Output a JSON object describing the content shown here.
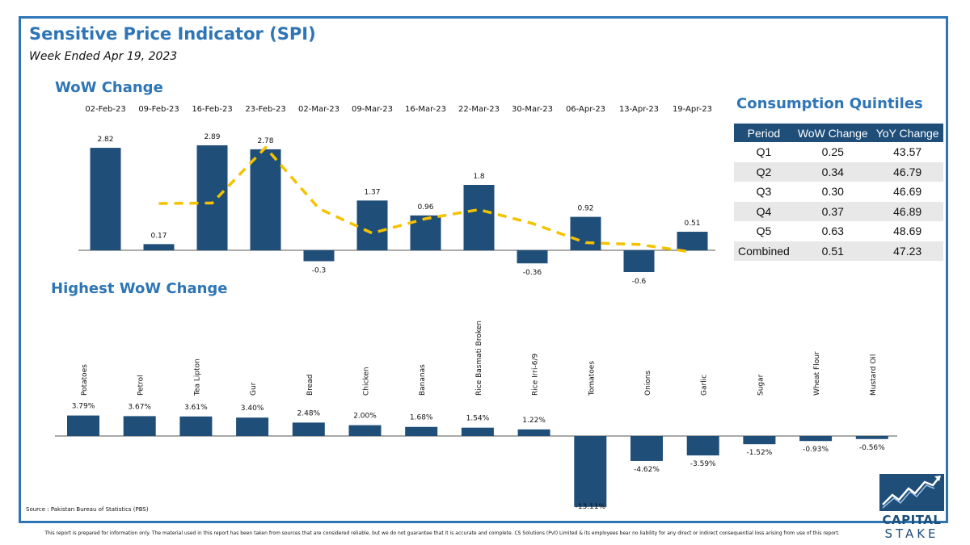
{
  "header": {
    "title": "Sensitive Price Indicator (SPI)",
    "subtitle": "Week Ended Apr 19, 2023"
  },
  "colors": {
    "accent": "#2e75b6",
    "bar": "#1f4e79",
    "trend": "#f5c200",
    "table_header": "#1f4e79"
  },
  "sections": {
    "wow": "WoW Change",
    "highest": "Highest WoW Change",
    "quintiles": "Consumption Quintiles"
  },
  "chart_data": [
    {
      "type": "bar",
      "name": "wow",
      "categories": [
        "02-Feb-23",
        "09-Feb-23",
        "16-Feb-23",
        "23-Feb-23",
        "02-Mar-23",
        "09-Mar-23",
        "16-Mar-23",
        "22-Mar-23",
        "30-Mar-23",
        "06-Apr-23",
        "13-Apr-23",
        "19-Apr-23"
      ],
      "values": [
        2.82,
        0.17,
        2.89,
        2.78,
        -0.3,
        1.37,
        0.96,
        1.8,
        -0.36,
        0.92,
        -0.6,
        0.51
      ],
      "labels": [
        "2.82",
        "0.17",
        "2.89",
        "2.78",
        "-0.3",
        "1.37",
        "0.96",
        "1.8",
        "-0.36",
        "0.92",
        "-0.6",
        "0.51"
      ],
      "trend": [
        null,
        1.29,
        1.3,
        2.83,
        1.15,
        0.47,
        0.87,
        1.12,
        0.74,
        0.21,
        0.16,
        -0.05
      ],
      "trend_style": "dashed"
    },
    {
      "type": "bar",
      "name": "highest",
      "categories": [
        "Potatoes",
        "Petrol",
        "Tea Lipton",
        "Gur",
        "Bread",
        "Chicken",
        "Bananas",
        "Rice Basmati Broken",
        "Rice Irri-6/9",
        "Tomatoes",
        "Onions",
        "Garlic",
        "Sugar",
        "Wheat Flour",
        "Mustard Oil"
      ],
      "values": [
        3.79,
        3.67,
        3.61,
        3.4,
        2.48,
        2.0,
        1.68,
        1.54,
        1.22,
        -13.11,
        -4.62,
        -3.59,
        -1.52,
        -0.93,
        -0.56
      ],
      "labels": [
        "3.79%",
        "3.67%",
        "3.61%",
        "3.40%",
        "2.48%",
        "2.00%",
        "1.68%",
        "1.54%",
        "1.22%",
        "-13.11%",
        "-4.62%",
        "-3.59%",
        "-1.52%",
        "-0.93%",
        "-0.56%"
      ]
    },
    {
      "type": "table",
      "name": "quintiles",
      "columns": [
        "Period",
        "WoW Change",
        "YoY Change"
      ],
      "rows": [
        [
          "Q1",
          "0.25",
          "43.57"
        ],
        [
          "Q2",
          "0.34",
          "46.79"
        ],
        [
          "Q3",
          "0.30",
          "46.69"
        ],
        [
          "Q4",
          "0.37",
          "46.89"
        ],
        [
          "Q5",
          "0.63",
          "48.69"
        ],
        [
          "Combined",
          "0.51",
          "47.23"
        ]
      ]
    }
  ],
  "footer": {
    "source": "Source : Pakistan Bureau of Statistics (PBS)",
    "disclaimer": "This report is prepared for information only. The material used in this report has been taken from sources that are considered reliable, but we do not guarantee that it is accurate and complete. CS Solutions (Pvt) Limited & its employees bear no liability for any direct or indirect consequential loss arising from use of this report."
  },
  "logo": {
    "word1": "CAPITAL",
    "word2": "STAKE",
    "icon": "rising-chart-arrow-icon"
  }
}
